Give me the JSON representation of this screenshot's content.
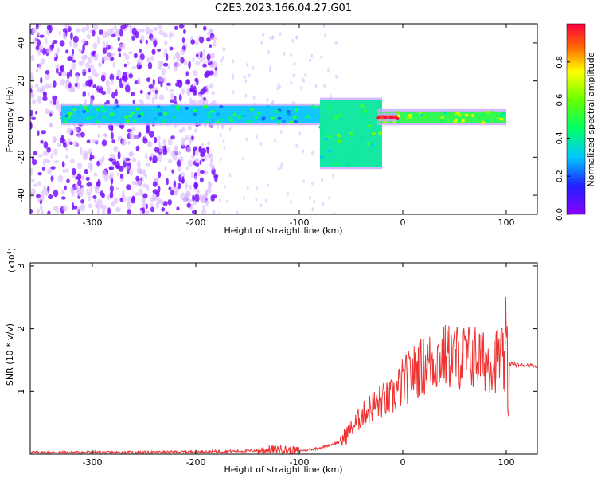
{
  "title": "C2E3.2023.166.04.27.G01",
  "chart_data": [
    {
      "type": "heatmap",
      "xlabel": "Height of straight line (km)",
      "ylabel": "Frequency (Hz)",
      "xlim": [
        -360,
        130
      ],
      "ylim": [
        -50,
        50
      ],
      "xticks": [
        -300,
        -200,
        -100,
        0,
        100
      ],
      "yticks": [
        -40,
        -20,
        0,
        20,
        40
      ],
      "colorbar": {
        "label": "Normalized spectral amplitude",
        "range": [
          0.0,
          1.0
        ],
        "ticks": [
          0.0,
          0.2,
          0.4,
          0.6,
          0.8
        ]
      },
      "regions": [
        {
          "x_range": [
            -360,
            -180
          ],
          "y_range": [
            -50,
            50
          ],
          "amplitude": 0.05,
          "description": "scattered noise"
        },
        {
          "x_range": [
            -330,
            -80
          ],
          "y_range": [
            -2,
            7
          ],
          "amplitude": 0.3
        },
        {
          "x_range": [
            -80,
            -20
          ],
          "y_range": [
            -25,
            10
          ],
          "amplitude": 0.4
        },
        {
          "x_range": [
            -25,
            100
          ],
          "y_range": [
            -2,
            4
          ],
          "amplitude": 0.5
        },
        {
          "x_range": [
            -25,
            -5
          ],
          "y_range": [
            0,
            2
          ],
          "amplitude": 0.95
        }
      ]
    },
    {
      "type": "line",
      "xlabel": "Height of straight line (km)",
      "ylabel": "SNR (10 * v/v)",
      "yscale_label": "(x10",
      "yscale_exp": "4",
      "yscale_close": ")",
      "xlim": [
        -360,
        130
      ],
      "ylim": [
        0,
        3.05
      ],
      "xticks": [
        -300,
        -200,
        -100,
        0,
        100
      ],
      "yticks": [
        1,
        2,
        3
      ],
      "color": "#ee3333",
      "series": [
        {
          "x": [
            -360,
            -300,
            -250,
            -200,
            -150,
            -120,
            -100,
            -80,
            -60,
            -50,
            -40,
            -30,
            -20,
            -10,
            0,
            10,
            20,
            30,
            40,
            50,
            60,
            70,
            80,
            90,
            95,
            100,
            102,
            105,
            110,
            120,
            130
          ],
          "y": [
            0.03,
            0.03,
            0.03,
            0.04,
            0.05,
            0.08,
            0.05,
            0.1,
            0.2,
            0.4,
            0.6,
            0.75,
            0.85,
            0.9,
            1.15,
            1.3,
            1.4,
            1.5,
            1.55,
            1.55,
            1.55,
            1.55,
            1.5,
            1.5,
            1.6,
            1.2,
            1.4,
            1.45,
            1.42,
            1.42,
            1.4
          ]
        }
      ]
    }
  ]
}
